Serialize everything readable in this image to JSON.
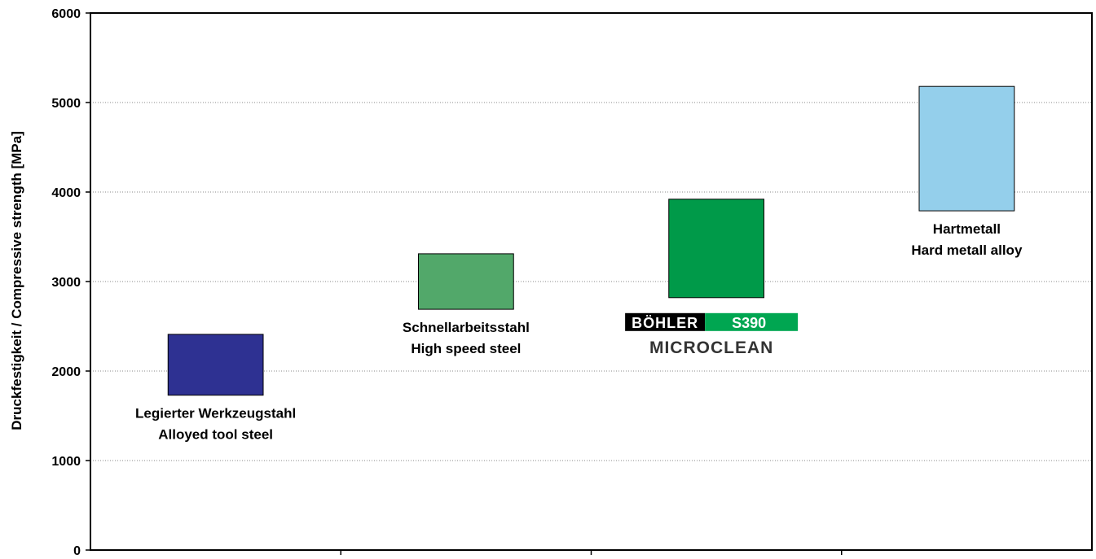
{
  "chart_data": {
    "type": "bar",
    "subtype": "floating-range",
    "ylabel": "Druckfestigkeit / Compressive strength [MPa]",
    "ylim": [
      0,
      6000
    ],
    "yticks": [
      0,
      1000,
      2000,
      3000,
      4000,
      5000,
      6000
    ],
    "grid": "horizontal-dotted",
    "legend": "none",
    "categories": [
      {
        "label_lines": [
          "Legierter Werkzeugstahl",
          "Alloyed tool steel"
        ],
        "low": 1730,
        "high": 2410,
        "color": "#2E3192"
      },
      {
        "label_lines": [
          "Schnellarbeitsstahl",
          "High speed steel"
        ],
        "low": 2690,
        "high": 3310,
        "color": "#52A86A"
      },
      {
        "label_lines": [],
        "low": 2820,
        "high": 3920,
        "color": "#009A49",
        "logo": {
          "brand": "BÖHLER",
          "grade": "S390",
          "tagline": "MICROCLEAN",
          "brand_bg": "#000000",
          "grade_bg": "#00A651"
        }
      },
      {
        "label_lines": [
          "Hartmetall",
          "Hard metall alloy"
        ],
        "low": 3790,
        "high": 5180,
        "color": "#94CFEB"
      }
    ]
  }
}
